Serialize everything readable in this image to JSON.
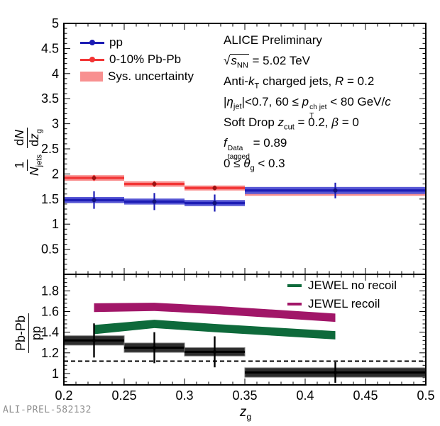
{
  "meta": {
    "watermark": "ALI-PREL-582132"
  },
  "annotations": [
    "ALICE Preliminary",
    "√~{*s*_{NN}} = 5.02 TeV",
    "Anti-*k*_{T} charged jets, *R* = 0.2",
    "|*η*_{jet}|<0.7, 60 ≤ *p*${ch jet|T} < 80 GeV/*c*",
    "Soft Drop *z*_{cut} = 0.2, *β* = 0",
    "*f*${Data|tagged} = 0.89",
    "0 ≤ *θ*_{g} < 0.3"
  ],
  "axes": {
    "x_title": "*z*_{g}",
    "xticks": [
      0.2,
      0.25,
      0.3,
      0.35,
      0.4,
      0.45,
      0.5
    ],
    "x_tick_labels": [
      "0.2",
      "0.25",
      "0.3",
      "0.35",
      "0.4",
      "0.45",
      "0.5"
    ],
    "top_yticks": [
      0.5,
      1,
      1.5,
      2,
      2.5,
      3,
      3.5,
      4,
      4.5,
      5
    ],
    "top_y_tick_labels": [
      "0.5",
      "1",
      "1.5",
      "2",
      "2.5",
      "3",
      "3.5",
      "4",
      "4.5",
      "5"
    ],
    "bottom_yticks": [
      1,
      1.2,
      1.4,
      1.6,
      1.8
    ],
    "bottom_y_tick_labels": [
      "1",
      "1.2",
      "1.4",
      "1.6",
      "1.8"
    ],
    "top_y_label": {
      "frac1_num": "1",
      "frac1_den": "*N*_{jets}",
      "frac2_num": "d*N*",
      "frac2_den": "d*z*_{g}"
    },
    "bottom_y_label": {
      "num": "Pb-Pb",
      "den": "pp"
    }
  },
  "legend_top": [
    {
      "label": "pp",
      "type": "marker-line",
      "color": "#1c1cb4"
    },
    {
      "label": "0-10% Pb-Pb",
      "type": "marker-line",
      "color": "#f23434"
    },
    {
      "label": "Sys. uncertainty",
      "type": "box",
      "color": "#f89090"
    }
  ],
  "legend_bottom": [
    {
      "label": "JEWEL no recoil",
      "type": "line",
      "color": "#0e6a3b"
    },
    {
      "label": "JEWEL recoil",
      "type": "line",
      "color": "#a11668"
    }
  ],
  "chart_data": [
    {
      "type": "errorbar",
      "panel": "top",
      "title": "",
      "xlabel": "z_g",
      "ylabel": "1/N_jets dN/dz_g",
      "xlim": [
        0.2,
        0.5
      ],
      "ylim": [
        0,
        5
      ],
      "x_bin_edges": [
        0.2,
        0.25,
        0.3,
        0.35,
        0.5
      ],
      "x_centers": [
        0.225,
        0.275,
        0.325,
        0.425
      ],
      "series": [
        {
          "name": "0-10% Pb-Pb",
          "values": [
            1.92,
            1.8,
            1.72,
            1.64
          ],
          "stat_err": [
            0.06,
            0.06,
            0.05,
            0.04
          ],
          "sys_err": [
            0.055,
            0.055,
            0.05,
            0.075
          ],
          "color": "#f23434",
          "band_color": "#f89090",
          "marker_color": "#9b1111"
        },
        {
          "name": "pp",
          "values": [
            1.48,
            1.45,
            1.42,
            1.67
          ],
          "stat_err": [
            0.175,
            0.17,
            0.17,
            0.155
          ],
          "sys_err": [
            0.06,
            0.06,
            0.06,
            0.07
          ],
          "color": "#1c1cb4",
          "band_color": "#5656d4",
          "marker_color": "#10107a"
        }
      ]
    },
    {
      "type": "ratio",
      "panel": "bottom",
      "ylabel": "Pb-Pb/pp",
      "xlim": [
        0.2,
        0.5
      ],
      "ylim": [
        0.89,
        1.96
      ],
      "x_bin_edges": [
        0.2,
        0.25,
        0.3,
        0.35,
        0.5
      ],
      "x_centers": [
        0.225,
        0.275,
        0.325,
        0.425
      ],
      "dashed_line_y": 1.12,
      "data": {
        "name": "Pb-Pb / pp",
        "values": [
          1.32,
          1.25,
          1.21,
          1.01
        ],
        "stat_err": [
          0.165,
          0.15,
          0.15,
          0.1
        ],
        "sys_err": [
          0.045,
          0.045,
          0.04,
          0.045
        ],
        "color": "#000000",
        "box_color": "#2d2d2d",
        "box_edge": "#787878"
      },
      "models": [
        {
          "name": "JEWEL no recoil",
          "color": "#0e6a3b",
          "x": [
            0.225,
            0.275,
            0.325,
            0.425
          ],
          "upper": [
            1.47,
            1.52,
            1.48,
            1.41
          ],
          "lower": [
            1.38,
            1.44,
            1.4,
            1.33
          ]
        },
        {
          "name": "JEWEL recoil",
          "color": "#a11668",
          "x": [
            0.225,
            0.275,
            0.325,
            0.425
          ],
          "upper": [
            1.68,
            1.685,
            1.655,
            1.58
          ],
          "lower": [
            1.595,
            1.605,
            1.575,
            1.5
          ]
        }
      ]
    }
  ]
}
